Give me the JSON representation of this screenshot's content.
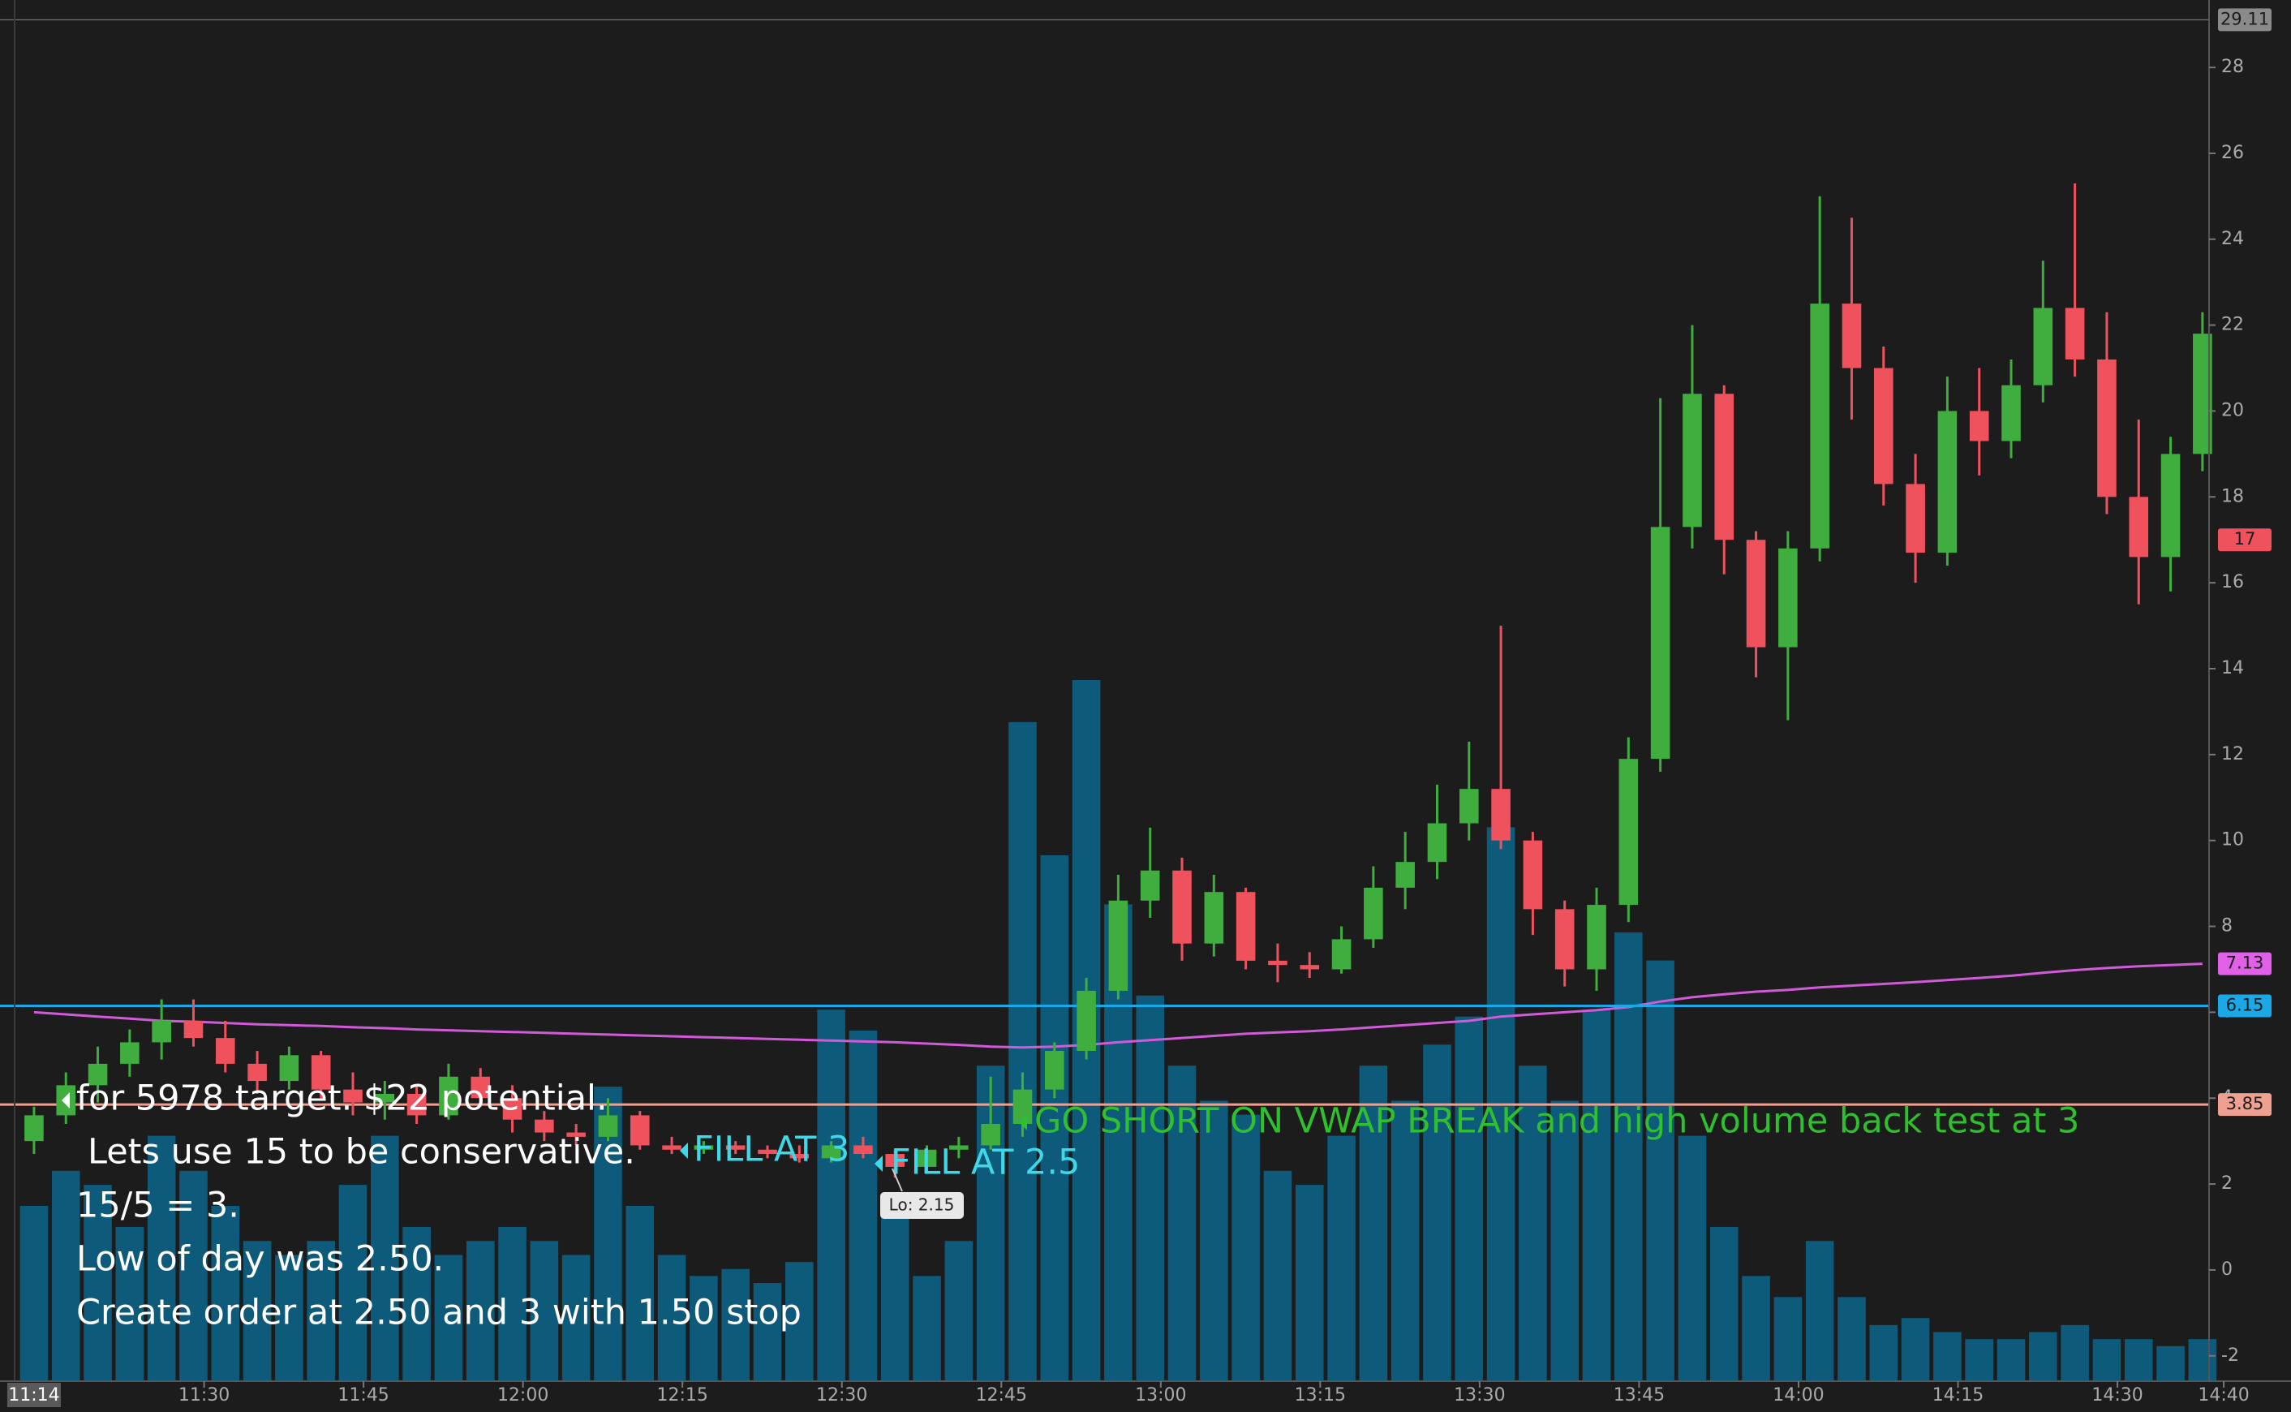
{
  "chart_data": {
    "type": "candlestick",
    "x": [
      674,
      677,
      680,
      683,
      686,
      689,
      692,
      695,
      698,
      701,
      704,
      707,
      710,
      713,
      716,
      719,
      722,
      725,
      728,
      731,
      734,
      737,
      740,
      743,
      746,
      749,
      752,
      755,
      758,
      761,
      764,
      767,
      770,
      773,
      776,
      779,
      782,
      785,
      788,
      791,
      794,
      797,
      800,
      803,
      806,
      809,
      812,
      815,
      818,
      821,
      824,
      827,
      830,
      833,
      836,
      839,
      842,
      845,
      848,
      851,
      854,
      857,
      860,
      863,
      866,
      869,
      872,
      875,
      878
    ],
    "open": [
      3.0,
      3.6,
      4.3,
      4.8,
      5.3,
      5.8,
      5.4,
      4.8,
      4.4,
      5.0,
      4.2,
      3.9,
      4.1,
      3.6,
      4.5,
      4.0,
      3.5,
      3.2,
      3.1,
      3.6,
      2.9,
      2.8,
      2.9,
      2.8,
      2.7,
      2.6,
      2.9,
      2.7,
      2.4,
      2.8,
      2.9,
      3.4,
      4.2,
      5.1,
      6.5,
      8.6,
      9.3,
      7.6,
      8.8,
      7.2,
      7.1,
      7.0,
      7.7,
      8.9,
      9.5,
      10.4,
      11.2,
      10.0,
      8.4,
      7.0,
      8.5,
      11.9,
      17.3,
      20.4,
      17.0,
      14.5,
      16.8,
      22.5,
      21.0,
      18.3,
      16.7,
      20.0,
      19.3,
      20.6,
      22.4,
      21.2,
      18.0,
      16.6,
      19.0
    ],
    "high": [
      3.8,
      4.6,
      5.2,
      5.6,
      6.3,
      6.3,
      5.8,
      5.1,
      5.2,
      5.1,
      4.6,
      4.4,
      4.3,
      4.8,
      4.7,
      4.3,
      3.7,
      3.4,
      4.0,
      3.7,
      3.1,
      3.0,
      3.0,
      2.9,
      2.9,
      3.0,
      3.1,
      2.8,
      2.9,
      3.1,
      4.5,
      4.6,
      5.3,
      6.8,
      9.2,
      10.3,
      9.6,
      9.2,
      8.9,
      7.6,
      7.4,
      8.0,
      9.4,
      10.2,
      11.3,
      12.3,
      15.0,
      10.2,
      8.6,
      8.9,
      12.4,
      20.3,
      22.0,
      20.6,
      17.2,
      17.2,
      25.0,
      24.5,
      21.5,
      19.0,
      20.8,
      21.0,
      21.2,
      23.5,
      25.3,
      22.3,
      19.8,
      19.4,
      22.3
    ],
    "low": [
      2.7,
      3.4,
      3.9,
      4.5,
      4.9,
      5.2,
      4.6,
      4.1,
      4.2,
      4.0,
      3.6,
      3.5,
      3.4,
      3.5,
      3.8,
      3.2,
      3.0,
      2.9,
      3.0,
      2.8,
      2.7,
      2.7,
      2.7,
      2.6,
      2.5,
      2.5,
      2.6,
      2.15,
      2.3,
      2.6,
      2.8,
      3.1,
      4.0,
      4.9,
      6.3,
      8.2,
      7.2,
      7.3,
      7.0,
      6.7,
      6.8,
      6.9,
      7.5,
      8.4,
      9.1,
      10.0,
      9.8,
      7.8,
      6.6,
      6.5,
      8.1,
      11.6,
      16.8,
      16.2,
      13.8,
      12.8,
      16.5,
      19.8,
      17.8,
      16.0,
      16.4,
      18.5,
      18.9,
      20.2,
      20.8,
      17.6,
      15.5,
      15.8,
      18.6
    ],
    "close": [
      3.6,
      4.3,
      4.8,
      5.3,
      5.8,
      5.4,
      4.8,
      4.4,
      5.0,
      4.2,
      3.9,
      4.1,
      3.6,
      4.5,
      4.0,
      3.5,
      3.2,
      3.1,
      3.6,
      2.9,
      2.8,
      2.9,
      2.8,
      2.7,
      2.6,
      2.9,
      2.7,
      2.4,
      2.8,
      2.9,
      3.4,
      4.2,
      5.1,
      6.5,
      8.6,
      9.3,
      7.6,
      8.8,
      7.2,
      7.1,
      7.0,
      7.7,
      8.9,
      9.5,
      10.4,
      11.2,
      10.0,
      8.4,
      7.0,
      8.5,
      11.9,
      17.3,
      20.4,
      17.0,
      14.5,
      16.8,
      22.5,
      21.0,
      18.3,
      16.7,
      20.0,
      19.3,
      20.6,
      22.4,
      21.2,
      18.0,
      16.6,
      19.0,
      21.8
    ],
    "volume": [
      25,
      30,
      28,
      22,
      35,
      30,
      25,
      20,
      18,
      20,
      28,
      35,
      22,
      18,
      20,
      22,
      20,
      18,
      42,
      25,
      18,
      15,
      16,
      14,
      17,
      53,
      50,
      25,
      15,
      20,
      45,
      94,
      75,
      100,
      68,
      55,
      45,
      40,
      38,
      30,
      28,
      35,
      45,
      40,
      48,
      52,
      79,
      45,
      40,
      53,
      64,
      60,
      35,
      22,
      15,
      12,
      20,
      12,
      8,
      9,
      7,
      6,
      6,
      7,
      8,
      6,
      6,
      5,
      6
    ],
    "up_color": "#3fae3f",
    "down_color": "#f0525d",
    "volume_color": "#0d5a7a",
    "vwap": {
      "color": "#d05ad8",
      "values": [
        6.0,
        5.95,
        5.9,
        5.85,
        5.8,
        5.78,
        5.75,
        5.72,
        5.7,
        5.68,
        5.65,
        5.63,
        5.6,
        5.58,
        5.56,
        5.54,
        5.52,
        5.5,
        5.48,
        5.46,
        5.44,
        5.42,
        5.4,
        5.38,
        5.36,
        5.34,
        5.32,
        5.3,
        5.27,
        5.24,
        5.2,
        5.18,
        5.2,
        5.24,
        5.3,
        5.35,
        5.4,
        5.45,
        5.5,
        5.53,
        5.56,
        5.6,
        5.65,
        5.7,
        5.75,
        5.8,
        5.9,
        5.95,
        6.0,
        6.05,
        6.12,
        6.25,
        6.35,
        6.42,
        6.48,
        6.52,
        6.58,
        6.62,
        6.66,
        6.7,
        6.75,
        6.8,
        6.85,
        6.92,
        6.98,
        7.03,
        7.07,
        7.1,
        7.13
      ]
    },
    "xlim": [
      670.8,
      880.3
    ],
    "ylim": [
      -2.59,
      29.57
    ],
    "xticks": [
      {
        "value": 690,
        "label": "11:30"
      },
      {
        "value": 705,
        "label": "11:45"
      },
      {
        "value": 720,
        "label": "12:00"
      },
      {
        "value": 735,
        "label": "12:15"
      },
      {
        "value": 750,
        "label": "12:30"
      },
      {
        "value": 765,
        "label": "12:45"
      },
      {
        "value": 780,
        "label": "13:00"
      },
      {
        "value": 795,
        "label": "13:15"
      },
      {
        "value": 810,
        "label": "13:30"
      },
      {
        "value": 825,
        "label": "13:45"
      },
      {
        "value": 840,
        "label": "14:00"
      },
      {
        "value": 855,
        "label": "14:15"
      },
      {
        "value": 870,
        "label": "14:30"
      },
      {
        "value": 880,
        "label": "14:40"
      }
    ],
    "yticks": [
      -2,
      0,
      2,
      4,
      6,
      8,
      10,
      12,
      14,
      16,
      18,
      20,
      22,
      24,
      26,
      28
    ],
    "cursor_time": {
      "value": 674,
      "label": "11:14"
    },
    "price_markers": [
      {
        "value": 29.11,
        "color": "#8a8a8a",
        "line": true
      },
      {
        "value": 17,
        "color": "#f0525d",
        "line": false
      },
      {
        "value": 7.13,
        "color": "#e060e8",
        "line": false
      },
      {
        "value": 6.15,
        "color": "#1aa8e6",
        "line": true
      },
      {
        "value": 3.85,
        "color": "#f0a090",
        "line": true
      }
    ],
    "annotations": {
      "notes": [
        "for 5978 target.  $22 potential.",
        "Lets use 15 to be conservative.",
        "15/5 = 3.",
        "Low of day was 2.50.",
        "Create order at 2.50 and 3 with 1.50 stop"
      ],
      "notes_color": "#ffffff",
      "fill_labels": [
        "FILL AT 3",
        "FILL AT 2.5"
      ],
      "fill_color": "#3fd8e8",
      "short_label": "GO SHORT ON VWAP BREAK and high volume back test at 3",
      "short_color": "#2fbf2f",
      "low_label": "Lo: 2.15"
    }
  }
}
